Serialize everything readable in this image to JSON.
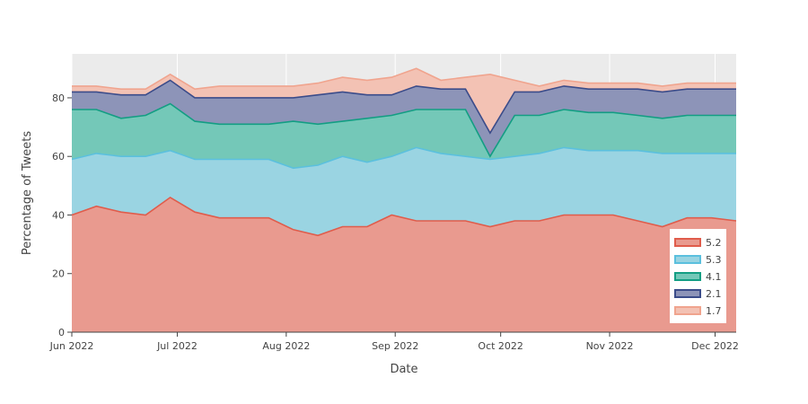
{
  "chart_data": {
    "type": "area",
    "stacked": true,
    "xlabel": "Date",
    "ylabel": "Percentage of Tweets",
    "x_range": [
      "2022-06-01",
      "2022-12-07"
    ],
    "ylim": [
      0,
      95
    ],
    "x_ticks": [
      {
        "date": "2022-06-01",
        "label": "Jun 2022"
      },
      {
        "date": "2022-07-01",
        "label": "Jul 2022"
      },
      {
        "date": "2022-08-01",
        "label": "Aug 2022"
      },
      {
        "date": "2022-09-01",
        "label": "Sep 2022"
      },
      {
        "date": "2022-10-01",
        "label": "Oct 2022"
      },
      {
        "date": "2022-11-01",
        "label": "Nov 2022"
      },
      {
        "date": "2022-12-01",
        "label": "Dec 2022"
      }
    ],
    "y_ticks": [
      0,
      20,
      40,
      60,
      80
    ],
    "grid": true,
    "legend_position": "bottom-right",
    "x": [
      "2022-06-01",
      "2022-06-08",
      "2022-06-15",
      "2022-06-22",
      "2022-06-29",
      "2022-07-06",
      "2022-07-13",
      "2022-07-20",
      "2022-07-27",
      "2022-08-03",
      "2022-08-10",
      "2022-08-17",
      "2022-08-24",
      "2022-08-31",
      "2022-09-07",
      "2022-09-14",
      "2022-09-21",
      "2022-09-28",
      "2022-10-05",
      "2022-10-12",
      "2022-10-19",
      "2022-10-26",
      "2022-11-02",
      "2022-11-09",
      "2022-11-16",
      "2022-11-23",
      "2022-11-30",
      "2022-12-07"
    ],
    "series": [
      {
        "name": "5.2",
        "color": "#e05c4b",
        "fill": "#e99a8f",
        "values": [
          40,
          43,
          41,
          40,
          46,
          41,
          39,
          39,
          39,
          35,
          33,
          36,
          36,
          40,
          38,
          38,
          38,
          36,
          38,
          38,
          40,
          40,
          40,
          38,
          36,
          39,
          39,
          38
        ]
      },
      {
        "name": "5.3",
        "color": "#5bc0de",
        "fill": "#9ad4e2",
        "values": [
          19,
          18,
          19,
          20,
          16,
          18,
          20,
          20,
          20,
          21,
          24,
          24,
          22,
          20,
          25,
          23,
          22,
          23,
          22,
          23,
          23,
          22,
          22,
          24,
          25,
          22,
          22,
          23
        ]
      },
      {
        "name": "4.1",
        "color": "#139e83",
        "fill": "#74c8b8",
        "values": [
          17,
          15,
          13,
          14,
          16,
          13,
          12,
          12,
          12,
          16,
          14,
          12,
          15,
          14,
          13,
          15,
          16,
          1,
          14,
          13,
          13,
          13,
          13,
          12,
          12,
          13,
          13,
          13
        ]
      },
      {
        "name": "2.1",
        "color": "#3b4c8a",
        "fill": "#8d94b8",
        "values": [
          6,
          6,
          8,
          7,
          8,
          8,
          9,
          9,
          9,
          8,
          10,
          10,
          8,
          7,
          8,
          7,
          7,
          8,
          8,
          8,
          8,
          8,
          8,
          9,
          9,
          9,
          9,
          9
        ]
      },
      {
        "name": "1.7",
        "color": "#f0a48e",
        "fill": "#f3c2b4",
        "values": [
          2,
          2,
          2,
          2,
          2,
          3,
          4,
          4,
          4,
          4,
          4,
          5,
          5,
          6,
          6,
          3,
          4,
          20,
          4,
          2,
          2,
          2,
          2,
          2,
          2,
          2,
          2,
          2
        ]
      }
    ]
  }
}
